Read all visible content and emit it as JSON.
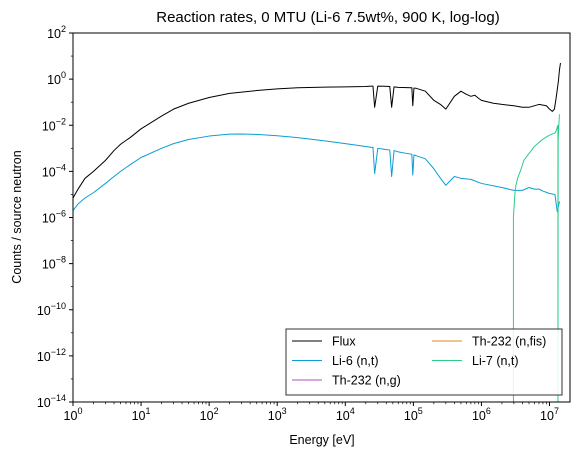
{
  "chart_data": {
    "type": "line",
    "title": "Reaction rates, 0 MTU (Li-6 7.5wt%, 900 K, log-log)",
    "xlabel": "Energy [eV]",
    "ylabel": "Counts / source neutron",
    "xscale": "log",
    "yscale": "log",
    "xlim": [
      1,
      20000000
    ],
    "ylim": [
      1e-14,
      100
    ],
    "grid": false,
    "legend_position": "lower-right",
    "legend_columns": 2,
    "x_ticks": [
      {
        "base": "10",
        "exp": "0",
        "value": 1
      },
      {
        "base": "10",
        "exp": "1",
        "value": 10
      },
      {
        "base": "10",
        "exp": "2",
        "value": 100
      },
      {
        "base": "10",
        "exp": "3",
        "value": 1000
      },
      {
        "base": "10",
        "exp": "4",
        "value": 10000
      },
      {
        "base": "10",
        "exp": "5",
        "value": 100000
      },
      {
        "base": "10",
        "exp": "6",
        "value": 1000000
      },
      {
        "base": "10",
        "exp": "7",
        "value": 10000000
      }
    ],
    "y_ticks": [
      {
        "base": "10",
        "exp": "−14",
        "value": 1e-14
      },
      {
        "base": "10",
        "exp": "−12",
        "value": 1e-12
      },
      {
        "base": "10",
        "exp": "−10",
        "value": 1e-10
      },
      {
        "base": "10",
        "exp": "−8",
        "value": 1e-08
      },
      {
        "base": "10",
        "exp": "−6",
        "value": 1e-06
      },
      {
        "base": "10",
        "exp": "−4",
        "value": 0.0001
      },
      {
        "base": "10",
        "exp": "−2",
        "value": 0.01
      },
      {
        "base": "10",
        "exp": "0",
        "value": 1
      },
      {
        "base": "10",
        "exp": "2",
        "value": 100
      }
    ],
    "series": [
      {
        "name": "Flux",
        "color": "#000000",
        "x": [
          1,
          1.2,
          1.5,
          2,
          3,
          4,
          5,
          7,
          10,
          20,
          30,
          50,
          100,
          200,
          500,
          1000,
          2000,
          5000,
          10000,
          20000,
          24000,
          25500,
          27000,
          30000,
          38000,
          45000,
          48000,
          52000,
          60000,
          80000,
          95000,
          98000,
          102000,
          110000,
          150000,
          200000,
          250000,
          300000,
          400000,
          500000,
          600000,
          700000,
          800000,
          900000,
          1000000,
          1500000,
          2000000,
          3000000,
          4000000,
          5000000,
          7000000,
          9000000,
          10000000,
          11000000,
          11800000,
          12500000,
          13500000,
          14000000,
          14500000
        ],
        "y": [
          7e-06,
          1.8e-05,
          5e-05,
          0.0001,
          0.0003,
          0.0008,
          0.0015,
          0.003,
          0.007,
          0.025,
          0.05,
          0.09,
          0.16,
          0.24,
          0.32,
          0.38,
          0.42,
          0.45,
          0.46,
          0.48,
          0.5,
          0.5,
          0.06,
          0.5,
          0.49,
          0.48,
          0.06,
          0.46,
          0.44,
          0.43,
          0.42,
          0.07,
          0.41,
          0.4,
          0.3,
          0.12,
          0.08,
          0.05,
          0.18,
          0.3,
          0.22,
          0.18,
          0.2,
          0.15,
          0.12,
          0.09,
          0.08,
          0.07,
          0.06,
          0.06,
          0.08,
          0.07,
          0.05,
          0.04,
          0.05,
          0.15,
          0.8,
          2.5,
          5
        ]
      },
      {
        "name": "Li-6 (n,t)",
        "color": "#0a9ed4",
        "x": [
          1,
          1.2,
          1.5,
          2,
          3,
          4,
          5,
          7,
          10,
          20,
          30,
          50,
          100,
          200,
          300,
          500,
          1000,
          2000,
          5000,
          10000,
          20000,
          24000,
          25500,
          27000,
          30000,
          38000,
          45000,
          48000,
          52000,
          60000,
          80000,
          95000,
          98000,
          102000,
          110000,
          150000,
          200000,
          250000,
          300000,
          400000,
          500000,
          700000,
          1000000,
          2000000,
          3000000,
          4000000,
          5000000,
          6000000,
          7000000,
          8000000,
          10000000,
          12000000,
          13000000,
          13500000,
          14000000
        ],
        "y": [
          2e-06,
          4e-06,
          7e-06,
          1.2e-05,
          3e-05,
          6e-05,
          0.0001,
          0.0002,
          0.0004,
          0.001,
          0.0016,
          0.0024,
          0.0034,
          0.0041,
          0.0042,
          0.004,
          0.0035,
          0.0029,
          0.0021,
          0.0016,
          0.0012,
          0.0011,
          0.0011,
          8e-05,
          0.001,
          0.0009,
          0.00085,
          6e-05,
          0.0008,
          0.0007,
          0.0006,
          0.00055,
          7e-05,
          0.00052,
          0.00048,
          0.00035,
          0.00013,
          5e-05,
          2.5e-05,
          6e-05,
          5e-05,
          4.5e-05,
          3e-05,
          2e-05,
          1.5e-05,
          1.5e-05,
          2e-05,
          1.7e-05,
          1.7e-05,
          1.4e-05,
          1.1e-05,
          1e-05,
          1.8e-06,
          3e-06,
          5e-06
        ]
      },
      {
        "name": "Th-232 (n,g)",
        "color": "#b04cc4",
        "x": [],
        "y": []
      },
      {
        "name": "Th-232 (n,fis)",
        "color": "#e08a1e",
        "x": [],
        "y": []
      },
      {
        "name": "Li-7 (n,t)",
        "color": "#2ecc8a",
        "x": [
          2950000,
          2950000,
          3050000,
          3100000,
          3200000,
          3400000,
          3800000,
          4200000,
          5000000,
          6000000,
          7000000,
          8000000,
          9000000,
          10000000,
          11000000,
          11800000,
          12200000,
          12600000,
          13000000,
          13200000,
          13300000,
          13300000,
          13400000,
          13700000,
          14000000
        ],
        "y": [
          1e-14,
          1e-06,
          5e-06,
          1e-05,
          2.4e-05,
          5e-05,
          0.00012,
          0.0003,
          0.0006,
          0.0012,
          0.0018,
          0.0025,
          0.0031,
          0.0037,
          0.0042,
          0.0045,
          0.0048,
          0.006,
          0.0085,
          0.0095,
          0.01,
          1e-14,
          0.002,
          0.01,
          0.03
        ]
      }
    ]
  }
}
